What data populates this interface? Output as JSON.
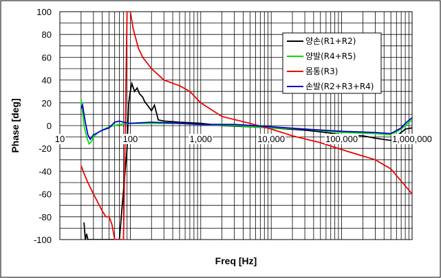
{
  "chart_data": {
    "type": "line",
    "xlabel": "Freq [Hz]",
    "ylabel": "Phase [deg]",
    "x_scale": "log",
    "xlim": [
      10,
      1000000
    ],
    "ylim": [
      -100,
      100
    ],
    "grid": true,
    "legend_position": "top-right",
    "x_ticks": [
      {
        "value": 10,
        "label": "10"
      },
      {
        "value": 100,
        "label": "100"
      },
      {
        "value": 1000,
        "label": "1,000"
      },
      {
        "value": 10000,
        "label": "10,000"
      },
      {
        "value": 100000,
        "label": "100,000"
      },
      {
        "value": 1000000,
        "label": "1,000,000"
      }
    ],
    "y_ticks": [
      {
        "value": 100,
        "label": "100"
      },
      {
        "value": 80,
        "label": "80"
      },
      {
        "value": 60,
        "label": "60"
      },
      {
        "value": 40,
        "label": "40"
      },
      {
        "value": 20,
        "label": "20"
      },
      {
        "value": 0,
        "label": "0"
      },
      {
        "value": -20,
        "label": "-20"
      },
      {
        "value": -40,
        "label": "-40"
      },
      {
        "value": -60,
        "label": "-60"
      },
      {
        "value": -80,
        "label": "-80"
      },
      {
        "value": -100,
        "label": "-100"
      }
    ],
    "series": [
      {
        "name": "양손(R1+R2)",
        "color": "#000000",
        "points": [
          [
            22,
            -85
          ],
          [
            23,
            -100
          ],
          [
            24,
            -95
          ],
          [
            25,
            -100
          ],
          [
            60,
            -100
          ],
          [
            70,
            -100
          ],
          [
            90,
            -20
          ],
          [
            95,
            20
          ],
          [
            100,
            30
          ],
          [
            105,
            37
          ],
          [
            115,
            30
          ],
          [
            125,
            33
          ],
          [
            135,
            28
          ],
          [
            150,
            25
          ],
          [
            160,
            21
          ],
          [
            180,
            17
          ],
          [
            200,
            13
          ],
          [
            220,
            18
          ],
          [
            250,
            5
          ],
          [
            300,
            4
          ],
          [
            500,
            3
          ],
          [
            1000,
            2
          ],
          [
            2000,
            0
          ],
          [
            5000,
            -1
          ],
          [
            10000,
            -2
          ],
          [
            30000,
            -4
          ],
          [
            60000,
            -6
          ],
          [
            100000,
            -8
          ],
          [
            200000,
            -9
          ],
          [
            300000,
            -11
          ],
          [
            500000,
            -13
          ],
          [
            700000,
            -6
          ],
          [
            800000,
            -3
          ],
          [
            1000000,
            -2
          ]
        ]
      },
      {
        "name": "양발(R4+R5)",
        "color": "#00e000",
        "points": [
          [
            20,
            23
          ],
          [
            21,
            12
          ],
          [
            22,
            0
          ],
          [
            24,
            -10
          ],
          [
            26,
            -16
          ],
          [
            28,
            -14
          ],
          [
            30,
            -10
          ],
          [
            35,
            -6
          ],
          [
            40,
            -4
          ],
          [
            50,
            -1
          ],
          [
            70,
            1
          ],
          [
            100,
            2
          ],
          [
            200,
            2
          ],
          [
            500,
            2
          ],
          [
            1000,
            1
          ],
          [
            3000,
            0
          ],
          [
            10000,
            -2
          ],
          [
            30000,
            -3
          ],
          [
            100000,
            -6
          ],
          [
            300000,
            -7
          ],
          [
            500000,
            -8
          ],
          [
            700000,
            -3
          ],
          [
            1000000,
            5
          ]
        ]
      },
      {
        "name": "몸통(R3)",
        "color": "#ee0000",
        "points": [
          [
            20,
            -35
          ],
          [
            22,
            -42
          ],
          [
            25,
            -50
          ],
          [
            30,
            -60
          ],
          [
            40,
            -75
          ],
          [
            45,
            -80
          ],
          [
            50,
            -80
          ],
          [
            55,
            -87
          ],
          [
            60,
            -100
          ],
          [
            70,
            -100
          ],
          [
            80,
            -100
          ],
          [
            90,
            100
          ],
          [
            100,
            100
          ],
          [
            110,
            85
          ],
          [
            130,
            68
          ],
          [
            150,
            60
          ],
          [
            200,
            50
          ],
          [
            300,
            40
          ],
          [
            500,
            35
          ],
          [
            700,
            30
          ],
          [
            1000,
            20
          ],
          [
            2000,
            8
          ],
          [
            5000,
            2
          ],
          [
            10000,
            -3
          ],
          [
            20000,
            -9
          ],
          [
            50000,
            -15
          ],
          [
            100000,
            -21
          ],
          [
            300000,
            -30
          ],
          [
            500000,
            -38
          ],
          [
            1000000,
            -60
          ]
        ]
      },
      {
        "name": "손발(R2+R3+R4)",
        "color": "#0000d0",
        "points": [
          [
            20,
            15
          ],
          [
            21,
            18
          ],
          [
            22,
            10
          ],
          [
            23,
            3
          ],
          [
            25,
            -8
          ],
          [
            27,
            -12
          ],
          [
            30,
            -8
          ],
          [
            35,
            -6
          ],
          [
            40,
            -4
          ],
          [
            50,
            -2
          ],
          [
            60,
            3
          ],
          [
            70,
            4
          ],
          [
            80,
            3
          ],
          [
            100,
            2
          ],
          [
            200,
            3
          ],
          [
            500,
            2
          ],
          [
            1000,
            1
          ],
          [
            3000,
            1
          ],
          [
            10000,
            -1
          ],
          [
            30000,
            -3
          ],
          [
            100000,
            -5
          ],
          [
            300000,
            -6
          ],
          [
            500000,
            -7
          ],
          [
            700000,
            -2
          ],
          [
            800000,
            2
          ],
          [
            1000000,
            7
          ]
        ]
      }
    ]
  }
}
